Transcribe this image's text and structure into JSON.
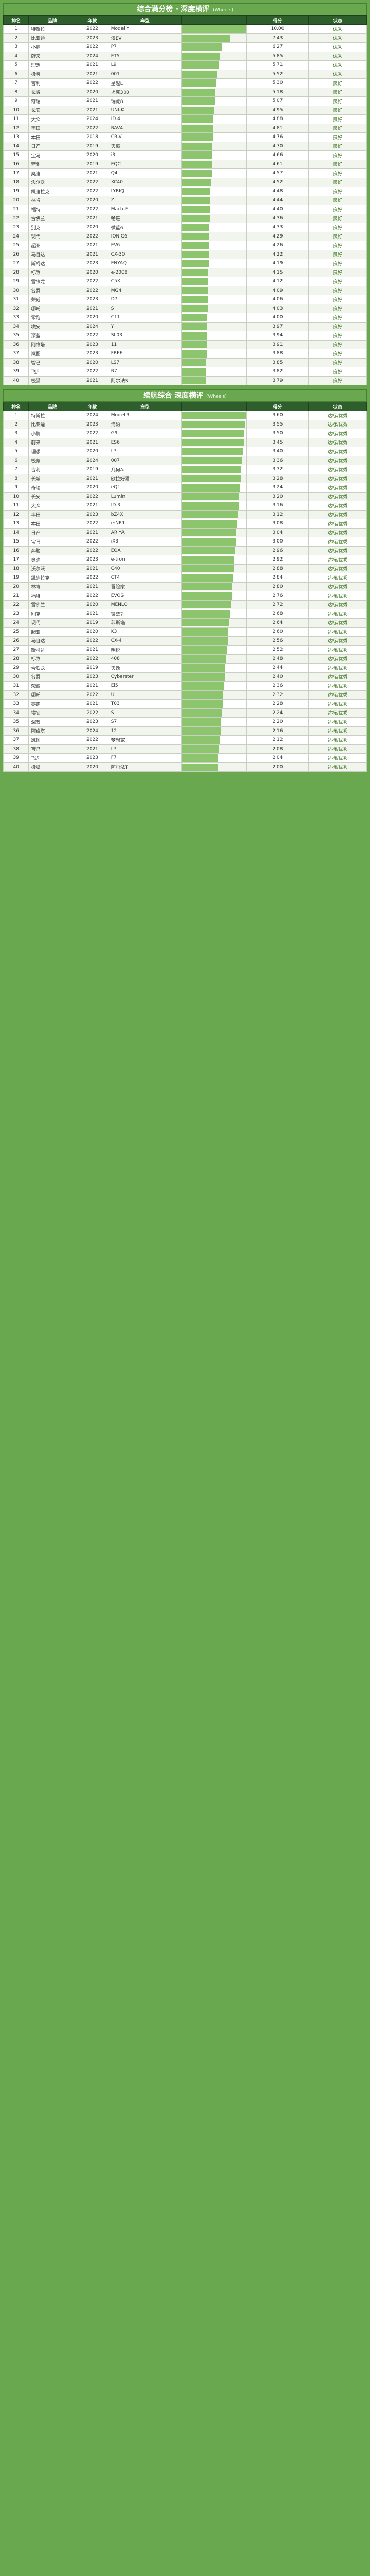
{
  "sections": [
    {
      "title": "综合满分榜 · 深度横评",
      "subtitle": "(Wheels)",
      "columns": [
        "排名",
        "品牌",
        "年款",
        "车型",
        "",
        "得分",
        "状态"
      ],
      "rows": [
        [
          "1",
          "特斯拉",
          "2022",
          "Model Y",
          "",
          "10.00",
          "优秀"
        ],
        [
          "2",
          "比亚迪",
          "2023",
          "汉EV",
          "",
          "7.43",
          "优秀"
        ],
        [
          "3",
          "小鹏",
          "2022",
          "P7",
          "",
          "6.27",
          "优秀"
        ],
        [
          "4",
          "蔚来",
          "2024",
          "ET5",
          "",
          "5.85",
          "优秀"
        ],
        [
          "5",
          "理想",
          "2021",
          "L9",
          "",
          "5.71",
          "优秀"
        ],
        [
          "6",
          "极氪",
          "2021",
          "001",
          "",
          "5.52",
          "优秀"
        ],
        [
          "7",
          "吉利",
          "2022",
          "星越L",
          "",
          "5.30",
          "良好"
        ],
        [
          "8",
          "长城",
          "2020",
          "坦克300",
          "",
          "5.18",
          "良好"
        ],
        [
          "9",
          "奇瑞",
          "2021",
          "瑞虎8",
          "",
          "5.07",
          "良好"
        ],
        [
          "10",
          "长安",
          "2021",
          "UNI-K",
          "",
          "4.95",
          "良好"
        ],
        [
          "11",
          "大众",
          "2024",
          "ID.4",
          "",
          "4.88",
          "良好"
        ],
        [
          "12",
          "丰田",
          "2022",
          "RAV4",
          "",
          "4.81",
          "良好"
        ],
        [
          "13",
          "本田",
          "2018",
          "CR-V",
          "",
          "4.76",
          "良好"
        ],
        [
          "14",
          "日产",
          "2019",
          "天籁",
          "",
          "4.70",
          "良好"
        ],
        [
          "15",
          "宝马",
          "2020",
          "i3",
          "",
          "4.66",
          "良好"
        ],
        [
          "16",
          "奔驰",
          "2019",
          "EQC",
          "",
          "4.61",
          "良好"
        ],
        [
          "17",
          "奥迪",
          "2021",
          "Q4",
          "",
          "4.57",
          "良好"
        ],
        [
          "18",
          "沃尔沃",
          "2022",
          "XC40",
          "",
          "4.52",
          "良好"
        ],
        [
          "19",
          "凯迪拉克",
          "2022",
          "LYRIQ",
          "",
          "4.48",
          "良好"
        ],
        [
          "20",
          "林肯",
          "2020",
          "Z",
          "",
          "4.44",
          "良好"
        ],
        [
          "21",
          "福特",
          "2022",
          "Mach-E",
          "",
          "4.40",
          "良好"
        ],
        [
          "22",
          "雪佛兰",
          "2021",
          "畅巡",
          "",
          "4.36",
          "良好"
        ],
        [
          "23",
          "别克",
          "2020",
          "微蓝6",
          "",
          "4.33",
          "良好"
        ],
        [
          "24",
          "现代",
          "2022",
          "IONIQ5",
          "",
          "4.29",
          "良好"
        ],
        [
          "25",
          "起亚",
          "2021",
          "EV6",
          "",
          "4.26",
          "良好"
        ],
        [
          "26",
          "马自达",
          "2021",
          "CX-30",
          "",
          "4.22",
          "良好"
        ],
        [
          "27",
          "斯柯达",
          "2023",
          "ENYAQ",
          "",
          "4.19",
          "良好"
        ],
        [
          "28",
          "标致",
          "2020",
          "e-2008",
          "",
          "4.15",
          "良好"
        ],
        [
          "29",
          "雪铁龙",
          "2022",
          "C5X",
          "",
          "4.12",
          "良好"
        ],
        [
          "30",
          "名爵",
          "2022",
          "MG4",
          "",
          "4.09",
          "良好"
        ],
        [
          "31",
          "荣威",
          "2023",
          "D7",
          "",
          "4.06",
          "良好"
        ],
        [
          "32",
          "哪吒",
          "2021",
          "S",
          "",
          "4.03",
          "良好"
        ],
        [
          "33",
          "零跑",
          "2020",
          "C11",
          "",
          "4.00",
          "良好"
        ],
        [
          "34",
          "埃安",
          "2024",
          "Y",
          "",
          "3.97",
          "良好"
        ],
        [
          "35",
          "深蓝",
          "2022",
          "SL03",
          "",
          "3.94",
          "良好"
        ],
        [
          "36",
          "阿维塔",
          "2023",
          "11",
          "",
          "3.91",
          "良好"
        ],
        [
          "37",
          "岚图",
          "2023",
          "FREE",
          "",
          "3.88",
          "良好"
        ],
        [
          "38",
          "智己",
          "2020",
          "LS7",
          "",
          "3.85",
          "良好"
        ],
        [
          "39",
          "飞凡",
          "2022",
          "R7",
          "",
          "3.82",
          "良好"
        ],
        [
          "40",
          "极狐",
          "2021",
          "阿尔法S",
          "",
          "3.79",
          "良好"
        ]
      ]
    },
    {
      "title": "续航综合 深度横评",
      "subtitle": "(Wheels)",
      "columns": [
        "排名",
        "品牌",
        "年款",
        "车型",
        "",
        "得分",
        "状态"
      ],
      "rows": [
        [
          "1",
          "特斯拉",
          "2024",
          "Model 3",
          "",
          "3.60",
          "达标/优秀"
        ],
        [
          "2",
          "比亚迪",
          "2023",
          "海豹",
          "",
          "3.55",
          "达标/优秀"
        ],
        [
          "3",
          "小鹏",
          "2022",
          "G9",
          "",
          "3.50",
          "达标/优秀"
        ],
        [
          "4",
          "蔚来",
          "2021",
          "ES6",
          "",
          "3.45",
          "达标/优秀"
        ],
        [
          "5",
          "理想",
          "2020",
          "L7",
          "",
          "3.40",
          "达标/优秀"
        ],
        [
          "6",
          "极氪",
          "2024",
          "007",
          "",
          "3.36",
          "达标/优秀"
        ],
        [
          "7",
          "吉利",
          "2019",
          "几何A",
          "",
          "3.32",
          "达标/优秀"
        ],
        [
          "8",
          "长城",
          "2021",
          "欧拉好猫",
          "",
          "3.28",
          "达标/优秀"
        ],
        [
          "9",
          "奇瑞",
          "2020",
          "eQ1",
          "",
          "3.24",
          "达标/优秀"
        ],
        [
          "10",
          "长安",
          "2022",
          "Lumin",
          "",
          "3.20",
          "达标/优秀"
        ],
        [
          "11",
          "大众",
          "2021",
          "ID.3",
          "",
          "3.16",
          "达标/优秀"
        ],
        [
          "12",
          "丰田",
          "2023",
          "bZ4X",
          "",
          "3.12",
          "达标/优秀"
        ],
        [
          "13",
          "本田",
          "2022",
          "e:NP1",
          "",
          "3.08",
          "达标/优秀"
        ],
        [
          "14",
          "日产",
          "2021",
          "ARIYA",
          "",
          "3.04",
          "达标/优秀"
        ],
        [
          "15",
          "宝马",
          "2022",
          "iX3",
          "",
          "3.00",
          "达标/优秀"
        ],
        [
          "16",
          "奔驰",
          "2022",
          "EQA",
          "",
          "2.96",
          "达标/优秀"
        ],
        [
          "17",
          "奥迪",
          "2023",
          "e-tron",
          "",
          "2.92",
          "达标/优秀"
        ],
        [
          "18",
          "沃尔沃",
          "2021",
          "C40",
          "",
          "2.88",
          "达标/优秀"
        ],
        [
          "19",
          "凯迪拉克",
          "2022",
          "CT4",
          "",
          "2.84",
          "达标/优秀"
        ],
        [
          "20",
          "林肯",
          "2021",
          "冒险家",
          "",
          "2.80",
          "达标/优秀"
        ],
        [
          "21",
          "福特",
          "2022",
          "EVOS",
          "",
          "2.76",
          "达标/优秀"
        ],
        [
          "22",
          "雪佛兰",
          "2020",
          "MENLO",
          "",
          "2.72",
          "达标/优秀"
        ],
        [
          "23",
          "别克",
          "2021",
          "微蓝7",
          "",
          "2.68",
          "达标/优秀"
        ],
        [
          "24",
          "现代",
          "2019",
          "菲斯塔",
          "",
          "2.64",
          "达标/优秀"
        ],
        [
          "25",
          "起亚",
          "2020",
          "K3",
          "",
          "2.60",
          "达标/优秀"
        ],
        [
          "26",
          "马自达",
          "2022",
          "CX-4",
          "",
          "2.56",
          "达标/优秀"
        ],
        [
          "27",
          "斯柯达",
          "2021",
          "明锐",
          "",
          "2.52",
          "达标/优秀"
        ],
        [
          "28",
          "标致",
          "2022",
          "408",
          "",
          "2.48",
          "达标/优秀"
        ],
        [
          "29",
          "雪铁龙",
          "2019",
          "天逸",
          "",
          "2.44",
          "达标/优秀"
        ],
        [
          "30",
          "名爵",
          "2023",
          "Cyberster",
          "",
          "2.40",
          "达标/优秀"
        ],
        [
          "31",
          "荣威",
          "2021",
          "Ei5",
          "",
          "2.36",
          "达标/优秀"
        ],
        [
          "32",
          "哪吒",
          "2022",
          "U",
          "",
          "2.32",
          "达标/优秀"
        ],
        [
          "33",
          "零跑",
          "2021",
          "T03",
          "",
          "2.28",
          "达标/优秀"
        ],
        [
          "34",
          "埃安",
          "2022",
          "S",
          "",
          "2.24",
          "达标/优秀"
        ],
        [
          "35",
          "深蓝",
          "2023",
          "S7",
          "",
          "2.20",
          "达标/优秀"
        ],
        [
          "36",
          "阿维塔",
          "2024",
          "12",
          "",
          "2.16",
          "达标/优秀"
        ],
        [
          "37",
          "岚图",
          "2022",
          "梦想家",
          "",
          "2.12",
          "达标/优秀"
        ],
        [
          "38",
          "智己",
          "2021",
          "L7",
          "",
          "2.08",
          "达标/优秀"
        ],
        [
          "39",
          "飞凡",
          "2023",
          "F7",
          "",
          "2.04",
          "达标/优秀"
        ],
        [
          "40",
          "极狐",
          "2020",
          "阿尔法T",
          "",
          "2.00",
          "达标/优秀"
        ]
      ]
    }
  ]
}
